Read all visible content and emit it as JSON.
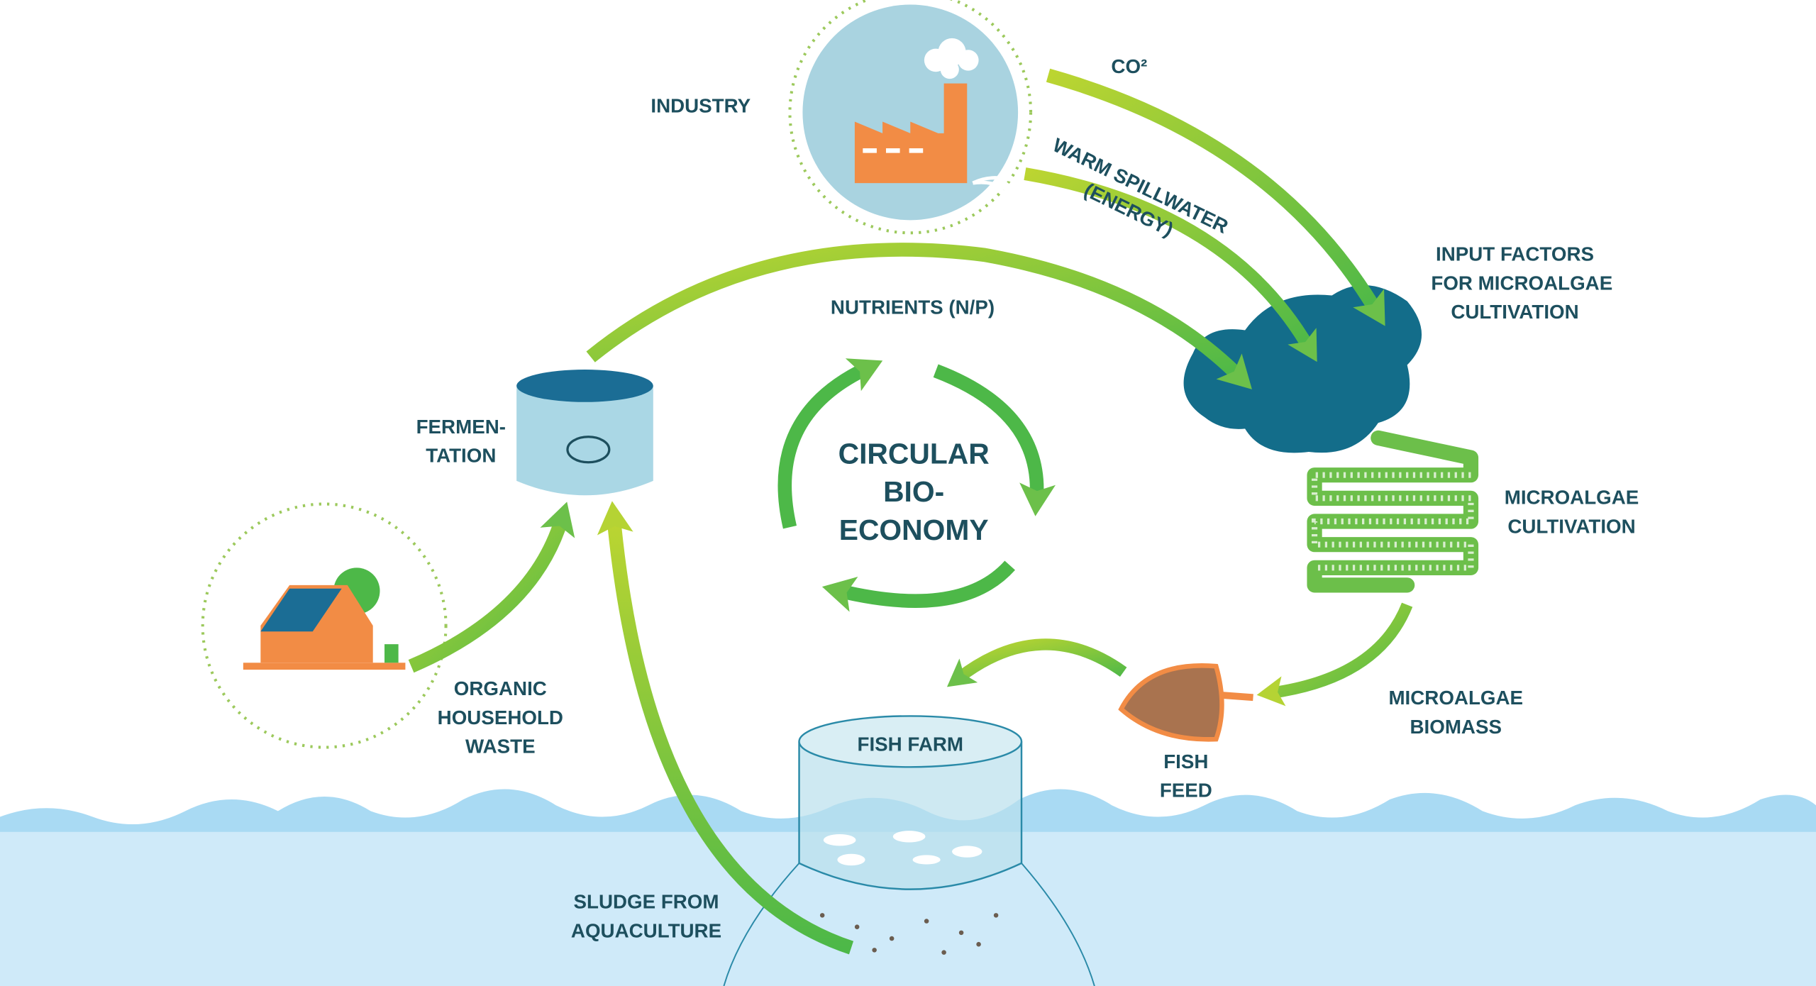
{
  "labels": {
    "industry": [
      "INDUSTRY"
    ],
    "co2": [
      "CO²"
    ],
    "spillwater": [
      "WARM SPILLWATER",
      "(ENERGY)"
    ],
    "input_factors": [
      "INPUT FACTORS",
      "FOR MICROALGAE",
      "CULTIVATION"
    ],
    "nutrients": [
      "NUTRIENTS (N/P)"
    ],
    "fermentation": [
      "FERMEN-",
      "TATION"
    ],
    "center": [
      "CIRCULAR",
      "BIO-",
      "ECONOMY"
    ],
    "microalgae_cultivation": [
      "MICROALGAE",
      "CULTIVATION"
    ],
    "microalgae_biomass": [
      "MICROALGAE",
      "BIOMASS"
    ],
    "fish_feed": [
      "FISH",
      "FEED"
    ],
    "fish_farm": [
      "FISH FARM"
    ],
    "household_waste": [
      "ORGANIC",
      "HOUSEHOLD",
      "WASTE"
    ],
    "sludge": [
      "SLUDGE FROM",
      "AQUACULTURE"
    ]
  }
}
